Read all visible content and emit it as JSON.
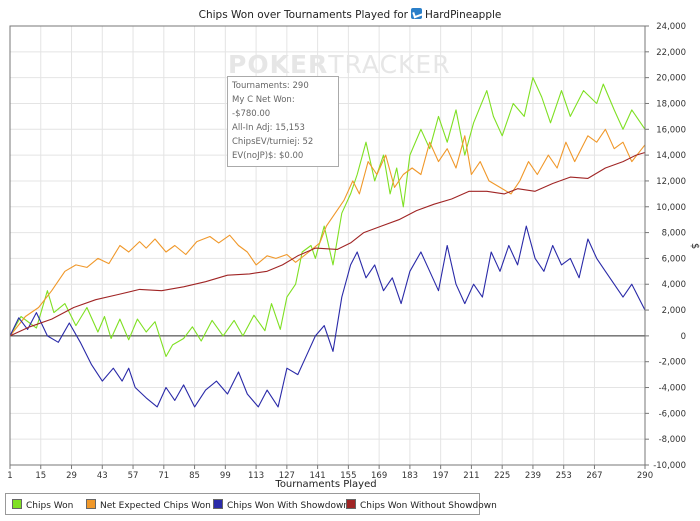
{
  "title": {
    "prefix": "Chips Won over Tournaments Played for",
    "player": "HardPineapple",
    "badge_icon": "pokerstars-icon"
  },
  "watermark": {
    "bold": "POKER",
    "thin": "TRACKER"
  },
  "tooltip": {
    "lines": [
      "Tournaments: 290",
      "My C Net Won: -$780.00",
      "All-In Adj: 15,153",
      "ChipsEV/turniej: 52",
      "EV(noJP)$: $0.00"
    ]
  },
  "chart_data": {
    "type": "line",
    "title": "Chips Won over Tournaments Played for HardPineapple",
    "xlabel": "Tournaments Played",
    "ylabel": "$",
    "xlim": [
      1,
      290
    ],
    "ylim": [
      -10000,
      24000
    ],
    "x_ticks": [
      1,
      15,
      29,
      43,
      57,
      71,
      85,
      99,
      113,
      127,
      141,
      155,
      169,
      183,
      197,
      211,
      225,
      239,
      253,
      267,
      290
    ],
    "y_ticks": [
      -10000,
      -8000,
      -6000,
      -4000,
      -2000,
      0,
      2000,
      4000,
      6000,
      8000,
      10000,
      12000,
      14000,
      16000,
      18000,
      20000,
      22000,
      24000
    ],
    "y_tick_labels": [
      "-10,000",
      "-8,000",
      "-6,000",
      "-4,000",
      "-2,000",
      "0",
      "2,000",
      "4,000",
      "6,000",
      "8,000",
      "10,000",
      "12,000",
      "14,000",
      "16,000",
      "18,000",
      "20,000",
      "22,000",
      "24,000"
    ],
    "grid": true,
    "legend_position": "bottom-left",
    "series": [
      {
        "name": "Chips Won",
        "color": "#7fe023",
        "points": [
          [
            1,
            0
          ],
          [
            6,
            1500
          ],
          [
            13,
            600
          ],
          [
            18,
            3500
          ],
          [
            21,
            1800
          ],
          [
            26,
            2500
          ],
          [
            31,
            800
          ],
          [
            36,
            2200
          ],
          [
            41,
            300
          ],
          [
            44,
            1500
          ],
          [
            47,
            -200
          ],
          [
            51,
            1300
          ],
          [
            55,
            -300
          ],
          [
            59,
            1300
          ],
          [
            63,
            300
          ],
          [
            67,
            1100
          ],
          [
            72,
            -1600
          ],
          [
            75,
            -700
          ],
          [
            80,
            -200
          ],
          [
            84,
            700
          ],
          [
            88,
            -400
          ],
          [
            93,
            1200
          ],
          [
            98,
            0
          ],
          [
            103,
            1200
          ],
          [
            107,
            0
          ],
          [
            112,
            1600
          ],
          [
            117,
            400
          ],
          [
            120,
            2500
          ],
          [
            124,
            500
          ],
          [
            127,
            3000
          ],
          [
            131,
            4000
          ],
          [
            134,
            6500
          ],
          [
            138,
            7000
          ],
          [
            140,
            6000
          ],
          [
            144,
            8500
          ],
          [
            148,
            5500
          ],
          [
            152,
            9500
          ],
          [
            156,
            11000
          ],
          [
            159,
            12500
          ],
          [
            163,
            15000
          ],
          [
            167,
            12000
          ],
          [
            171,
            14000
          ],
          [
            174,
            11000
          ],
          [
            177,
            13000
          ],
          [
            180,
            10000
          ],
          [
            183,
            14000
          ],
          [
            188,
            16000
          ],
          [
            192,
            14500
          ],
          [
            196,
            17000
          ],
          [
            200,
            15000
          ],
          [
            204,
            17500
          ],
          [
            208,
            14000
          ],
          [
            212,
            16500
          ],
          [
            218,
            19000
          ],
          [
            221,
            17000
          ],
          [
            225,
            15500
          ],
          [
            230,
            18000
          ],
          [
            235,
            17000
          ],
          [
            239,
            20000
          ],
          [
            243,
            18500
          ],
          [
            247,
            16500
          ],
          [
            252,
            19000
          ],
          [
            256,
            17000
          ],
          [
            262,
            19000
          ],
          [
            268,
            18000
          ],
          [
            271,
            19500
          ],
          [
            276,
            17500
          ],
          [
            280,
            16000
          ],
          [
            284,
            17500
          ],
          [
            290,
            16000
          ]
        ]
      },
      {
        "name": "Net Expected Chips Won",
        "color": "#f0982a",
        "points": [
          [
            1,
            0
          ],
          [
            8,
            1500
          ],
          [
            14,
            2200
          ],
          [
            20,
            3500
          ],
          [
            26,
            5000
          ],
          [
            31,
            5500
          ],
          [
            36,
            5300
          ],
          [
            41,
            6000
          ],
          [
            46,
            5600
          ],
          [
            51,
            7000
          ],
          [
            55,
            6500
          ],
          [
            60,
            7300
          ],
          [
            63,
            6800
          ],
          [
            67,
            7500
          ],
          [
            72,
            6500
          ],
          [
            76,
            7000
          ],
          [
            81,
            6300
          ],
          [
            86,
            7300
          ],
          [
            92,
            7700
          ],
          [
            96,
            7200
          ],
          [
            101,
            7800
          ],
          [
            105,
            7000
          ],
          [
            109,
            6500
          ],
          [
            113,
            5500
          ],
          [
            118,
            6200
          ],
          [
            122,
            6000
          ],
          [
            127,
            6300
          ],
          [
            131,
            5700
          ],
          [
            137,
            6500
          ],
          [
            142,
            7200
          ],
          [
            145,
            8500
          ],
          [
            149,
            9500
          ],
          [
            153,
            10500
          ],
          [
            157,
            12000
          ],
          [
            160,
            11000
          ],
          [
            164,
            13500
          ],
          [
            168,
            12500
          ],
          [
            172,
            14000
          ],
          [
            176,
            11500
          ],
          [
            180,
            12500
          ],
          [
            184,
            13000
          ],
          [
            188,
            12500
          ],
          [
            192,
            15000
          ],
          [
            196,
            13500
          ],
          [
            200,
            14500
          ],
          [
            204,
            13000
          ],
          [
            208,
            15500
          ],
          [
            211,
            12500
          ],
          [
            215,
            13500
          ],
          [
            219,
            12000
          ],
          [
            224,
            11500
          ],
          [
            229,
            11000
          ],
          [
            233,
            12000
          ],
          [
            237,
            13500
          ],
          [
            241,
            12500
          ],
          [
            246,
            14000
          ],
          [
            250,
            13000
          ],
          [
            254,
            15000
          ],
          [
            258,
            13500
          ],
          [
            264,
            15500
          ],
          [
            268,
            15000
          ],
          [
            272,
            16000
          ],
          [
            276,
            14500
          ],
          [
            280,
            15000
          ],
          [
            284,
            13500
          ],
          [
            290,
            14800
          ]
        ]
      },
      {
        "name": "Chips Won With Showdown",
        "color": "#2a2aa8",
        "points": [
          [
            1,
            0
          ],
          [
            5,
            1400
          ],
          [
            9,
            500
          ],
          [
            13,
            1800
          ],
          [
            18,
            0
          ],
          [
            23,
            -500
          ],
          [
            28,
            1000
          ],
          [
            33,
            -500
          ],
          [
            38,
            -2200
          ],
          [
            43,
            -3500
          ],
          [
            48,
            -2500
          ],
          [
            52,
            -3500
          ],
          [
            55,
            -2500
          ],
          [
            58,
            -4000
          ],
          [
            63,
            -4800
          ],
          [
            68,
            -5500
          ],
          [
            72,
            -4000
          ],
          [
            76,
            -5000
          ],
          [
            80,
            -3800
          ],
          [
            85,
            -5500
          ],
          [
            90,
            -4200
          ],
          [
            95,
            -3500
          ],
          [
            100,
            -4500
          ],
          [
            105,
            -2800
          ],
          [
            109,
            -4500
          ],
          [
            114,
            -5500
          ],
          [
            118,
            -4200
          ],
          [
            123,
            -5500
          ],
          [
            127,
            -2500
          ],
          [
            132,
            -3000
          ],
          [
            136,
            -1500
          ],
          [
            140,
            0
          ],
          [
            144,
            800
          ],
          [
            148,
            -1200
          ],
          [
            152,
            3000
          ],
          [
            156,
            5500
          ],
          [
            159,
            6500
          ],
          [
            163,
            4500
          ],
          [
            167,
            5500
          ],
          [
            171,
            3500
          ],
          [
            175,
            4500
          ],
          [
            179,
            2500
          ],
          [
            183,
            5000
          ],
          [
            188,
            6500
          ],
          [
            192,
            5000
          ],
          [
            196,
            3500
          ],
          [
            200,
            7000
          ],
          [
            204,
            4000
          ],
          [
            208,
            2500
          ],
          [
            212,
            4000
          ],
          [
            216,
            3000
          ],
          [
            220,
            6500
          ],
          [
            224,
            5000
          ],
          [
            228,
            7000
          ],
          [
            232,
            5500
          ],
          [
            236,
            8500
          ],
          [
            240,
            6000
          ],
          [
            244,
            5000
          ],
          [
            248,
            7000
          ],
          [
            252,
            5500
          ],
          [
            256,
            6000
          ],
          [
            260,
            4500
          ],
          [
            264,
            7500
          ],
          [
            268,
            6000
          ],
          [
            272,
            5000
          ],
          [
            276,
            4000
          ],
          [
            280,
            3000
          ],
          [
            284,
            4000
          ],
          [
            290,
            2000
          ]
        ]
      },
      {
        "name": "Chips Won Without Showdown",
        "color": "#a02525",
        "points": [
          [
            1,
            0
          ],
          [
            10,
            700
          ],
          [
            20,
            1300
          ],
          [
            30,
            2200
          ],
          [
            40,
            2800
          ],
          [
            50,
            3200
          ],
          [
            60,
            3600
          ],
          [
            70,
            3500
          ],
          [
            80,
            3800
          ],
          [
            90,
            4200
          ],
          [
            100,
            4700
          ],
          [
            110,
            4800
          ],
          [
            118,
            5000
          ],
          [
            125,
            5500
          ],
          [
            132,
            6200
          ],
          [
            140,
            6800
          ],
          [
            150,
            6700
          ],
          [
            156,
            7200
          ],
          [
            162,
            8000
          ],
          [
            170,
            8500
          ],
          [
            178,
            9000
          ],
          [
            186,
            9700
          ],
          [
            194,
            10200
          ],
          [
            202,
            10600
          ],
          [
            210,
            11200
          ],
          [
            218,
            11200
          ],
          [
            226,
            11000
          ],
          [
            232,
            11400
          ],
          [
            240,
            11200
          ],
          [
            248,
            11800
          ],
          [
            256,
            12300
          ],
          [
            264,
            12200
          ],
          [
            272,
            13000
          ],
          [
            280,
            13500
          ],
          [
            286,
            14000
          ],
          [
            290,
            14200
          ]
        ]
      }
    ]
  }
}
